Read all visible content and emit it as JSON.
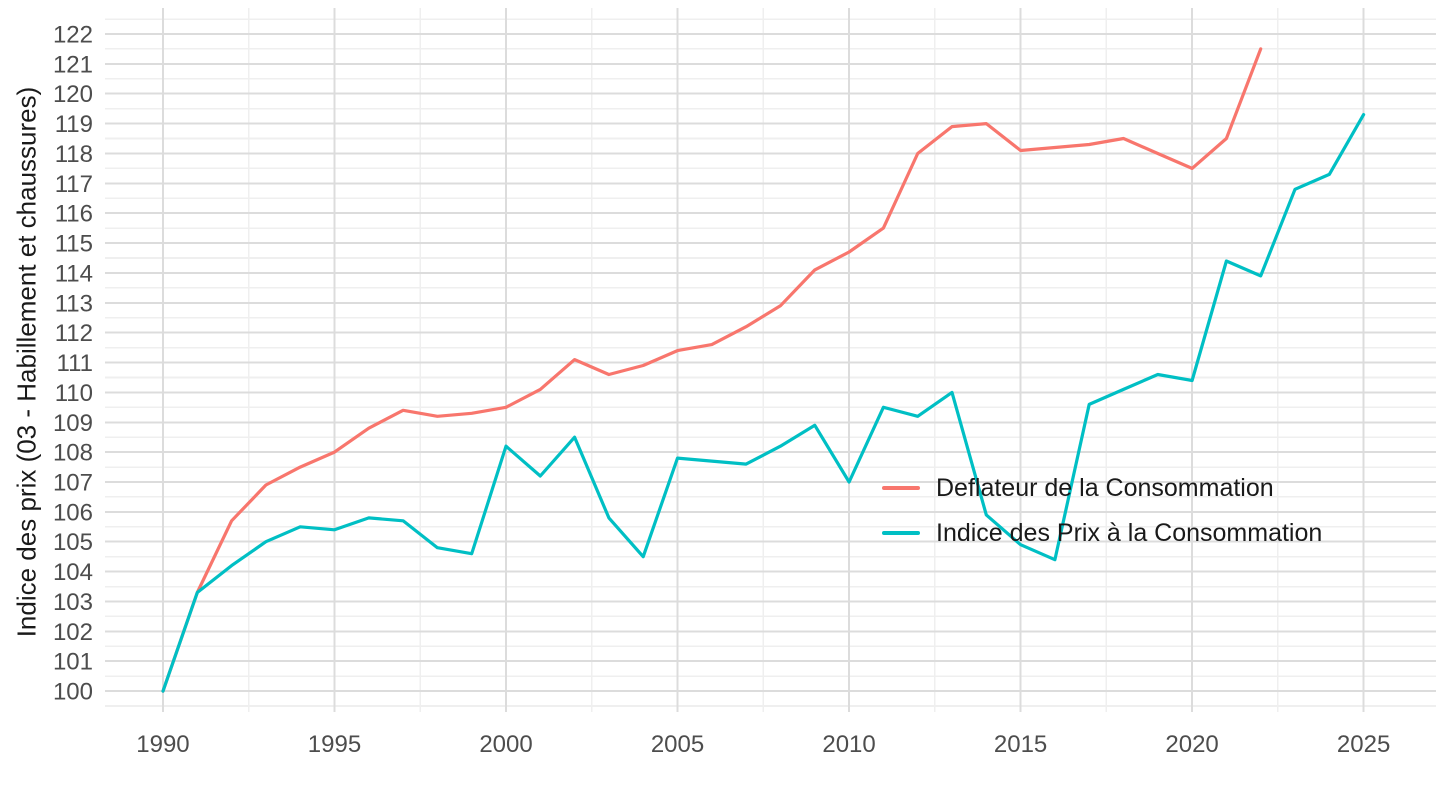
{
  "chart_data": {
    "type": "line",
    "title": "",
    "xlabel": "",
    "ylabel": "Indice des prix (03 - Habillement et chaussures)",
    "grid": "major-and-minor",
    "legend_position": "inside-right-middle",
    "xlim": [
      1988.31,
      2027.11
    ],
    "ylim": [
      99.3,
      122.87
    ],
    "x_ticks_major": [
      1990,
      1995,
      2000,
      2005,
      2010,
      2015,
      2020,
      2025
    ],
    "x_ticks_minor": [
      1992.5,
      1997.5,
      2002.5,
      2007.5,
      2012.5,
      2017.5,
      2022.5
    ],
    "y_ticks_major": [
      100,
      101,
      102,
      103,
      104,
      105,
      106,
      107,
      108,
      109,
      110,
      111,
      112,
      113,
      114,
      115,
      116,
      117,
      118,
      119,
      120,
      121,
      122
    ],
    "y_ticks_minor": [
      99.5,
      100.5,
      101.5,
      102.5,
      103.5,
      104.5,
      105.5,
      106.5,
      107.5,
      108.5,
      109.5,
      110.5,
      111.5,
      112.5,
      113.5,
      114.5,
      115.5,
      116.5,
      117.5,
      118.5,
      119.5,
      120.5,
      121.5,
      122.5
    ],
    "series": [
      {
        "id": "deflateur-consommation",
        "name": "Deflateur de la Consommation",
        "color": "#F8766D",
        "years": [
          1990,
          1991,
          1992,
          1993,
          1994,
          1995,
          1996,
          1997,
          1998,
          1999,
          2000,
          2001,
          2002,
          2003,
          2004,
          2005,
          2006,
          2007,
          2008,
          2009,
          2010,
          2011,
          2012,
          2013,
          2014,
          2015,
          2016,
          2017,
          2018,
          2019,
          2020,
          2021,
          2022
        ],
        "values": [
          100.0,
          103.3,
          105.7,
          106.9,
          107.5,
          108.0,
          108.8,
          109.4,
          109.2,
          109.3,
          109.5,
          110.1,
          111.1,
          110.6,
          110.9,
          111.4,
          111.6,
          112.2,
          112.9,
          114.1,
          114.7,
          115.5,
          118.0,
          118.9,
          119.0,
          118.1,
          118.2,
          118.3,
          118.5,
          118.0,
          117.5,
          118.5,
          121.5
        ]
      },
      {
        "id": "indice-prix-consommation",
        "name": "Indice des Prix à la Consommation",
        "color": "#00BFC4",
        "years": [
          1990,
          1991,
          1992,
          1993,
          1994,
          1995,
          1996,
          1997,
          1998,
          1999,
          2000,
          2001,
          2002,
          2003,
          2004,
          2005,
          2006,
          2007,
          2008,
          2009,
          2010,
          2011,
          2012,
          2013,
          2014,
          2015,
          2016,
          2017,
          2018,
          2019,
          2020,
          2021,
          2022,
          2023,
          2024,
          2025
        ],
        "values": [
          100.0,
          103.3,
          104.2,
          105.0,
          105.5,
          105.4,
          105.8,
          105.7,
          104.8,
          104.6,
          108.2,
          107.2,
          108.5,
          105.8,
          104.5,
          107.8,
          107.7,
          107.6,
          108.2,
          108.9,
          107.0,
          109.5,
          109.2,
          110.0,
          105.9,
          104.9,
          104.4,
          109.6,
          110.1,
          110.6,
          110.4,
          114.4,
          113.9,
          116.8,
          117.3,
          119.3
        ]
      }
    ],
    "colors": {
      "background": "#ffffff",
      "grid_major": "#DCDCDC",
      "grid_minor": "#EFEFEF",
      "tick_label_text": "#4D4D4D",
      "axis_title_text": "#1a1a1a",
      "legend_text": "#1a1a1a"
    }
  }
}
